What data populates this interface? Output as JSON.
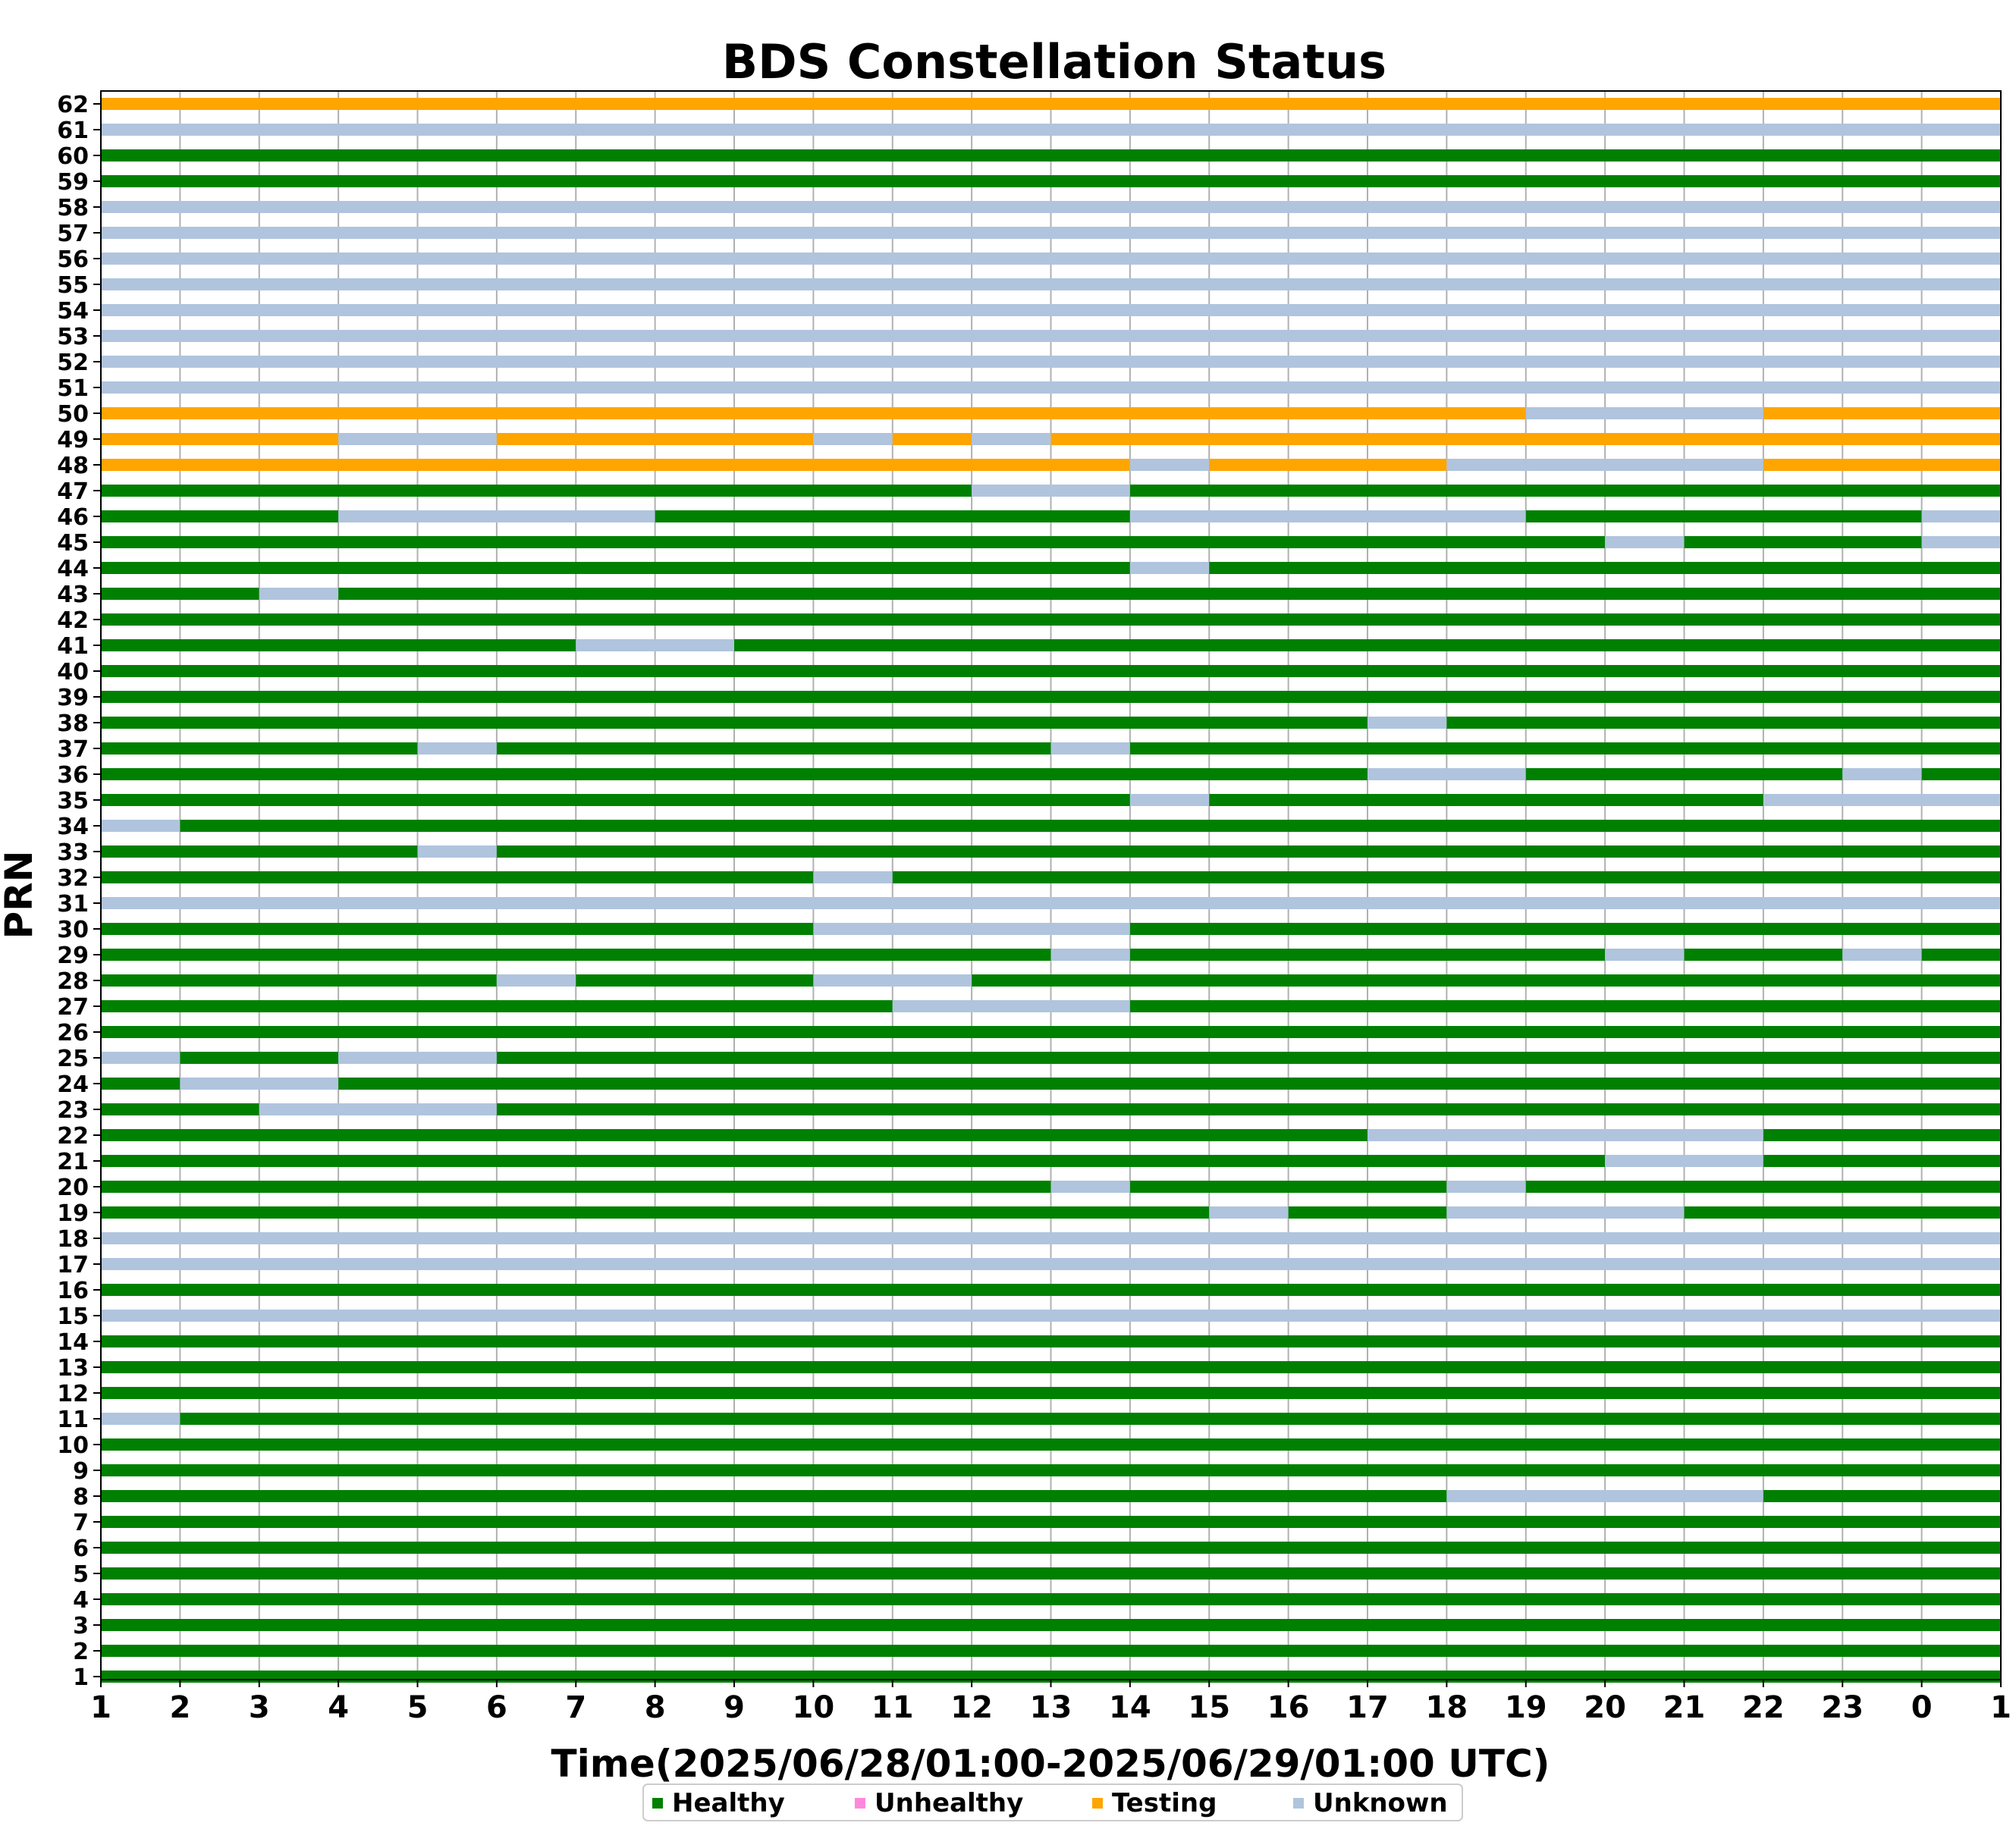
{
  "chart_data": {
    "type": "bar",
    "title": "BDS Constellation Status",
    "xlabel": "Time(2025/06/28/01:00-2025/06/29/01:00 UTC)",
    "ylabel": "PRN",
    "x_ticks": [
      "1",
      "2",
      "3",
      "4",
      "5",
      "6",
      "7",
      "8",
      "9",
      "10",
      "11",
      "12",
      "13",
      "14",
      "15",
      "16",
      "17",
      "18",
      "19",
      "20",
      "21",
      "22",
      "23",
      "0",
      "1"
    ],
    "xlim": [
      0,
      24
    ],
    "grid": "vertical",
    "legend_placement": "bottom-center",
    "legend": [
      {
        "label": "Healthy",
        "color": "#008000"
      },
      {
        "label": "Unhealthy",
        "color": "#ff88dd"
      },
      {
        "label": "Testing",
        "color": "#ffa500"
      },
      {
        "label": "Unknown",
        "color": "#b0c4de"
      }
    ],
    "status_colors": {
      "H": "#008000",
      "U": "#ff88dd",
      "T": "#ffa500",
      "K": "#b0c4de"
    },
    "status_unit": "hours since 2025/06/28 01:00 UTC",
    "prn_status": [
      {
        "prn": "1",
        "segments": [
          [
            0,
            24,
            "H"
          ]
        ]
      },
      {
        "prn": "2",
        "segments": [
          [
            0,
            24,
            "H"
          ]
        ]
      },
      {
        "prn": "3",
        "segments": [
          [
            0,
            24,
            "H"
          ]
        ]
      },
      {
        "prn": "4",
        "segments": [
          [
            0,
            24,
            "H"
          ]
        ]
      },
      {
        "prn": "5",
        "segments": [
          [
            0,
            24,
            "H"
          ]
        ]
      },
      {
        "prn": "6",
        "segments": [
          [
            0,
            24,
            "H"
          ]
        ]
      },
      {
        "prn": "7",
        "segments": [
          [
            0,
            24,
            "H"
          ]
        ]
      },
      {
        "prn": "8",
        "segments": [
          [
            0,
            17,
            "H"
          ],
          [
            17,
            21,
            "K"
          ],
          [
            21,
            24,
            "H"
          ]
        ]
      },
      {
        "prn": "9",
        "segments": [
          [
            0,
            24,
            "H"
          ]
        ]
      },
      {
        "prn": "10",
        "segments": [
          [
            0,
            24,
            "H"
          ]
        ]
      },
      {
        "prn": "11",
        "segments": [
          [
            0,
            1,
            "K"
          ],
          [
            1,
            24,
            "H"
          ]
        ]
      },
      {
        "prn": "12",
        "segments": [
          [
            0,
            24,
            "H"
          ]
        ]
      },
      {
        "prn": "13",
        "segments": [
          [
            0,
            24,
            "H"
          ]
        ]
      },
      {
        "prn": "14",
        "segments": [
          [
            0,
            24,
            "H"
          ]
        ]
      },
      {
        "prn": "15",
        "segments": [
          [
            0,
            24,
            "K"
          ]
        ]
      },
      {
        "prn": "16",
        "segments": [
          [
            0,
            24,
            "H"
          ]
        ]
      },
      {
        "prn": "17",
        "segments": [
          [
            0,
            24,
            "K"
          ]
        ]
      },
      {
        "prn": "18",
        "segments": [
          [
            0,
            24,
            "K"
          ]
        ]
      },
      {
        "prn": "19",
        "segments": [
          [
            0,
            14,
            "H"
          ],
          [
            14,
            15,
            "K"
          ],
          [
            15,
            17,
            "H"
          ],
          [
            17,
            20,
            "K"
          ],
          [
            20,
            24,
            "H"
          ]
        ]
      },
      {
        "prn": "20",
        "segments": [
          [
            0,
            12,
            "H"
          ],
          [
            12,
            13,
            "K"
          ],
          [
            13,
            17,
            "H"
          ],
          [
            17,
            18,
            "K"
          ],
          [
            18,
            24,
            "H"
          ]
        ]
      },
      {
        "prn": "21",
        "segments": [
          [
            0,
            19,
            "H"
          ],
          [
            19,
            21,
            "K"
          ],
          [
            21,
            24,
            "H"
          ]
        ]
      },
      {
        "prn": "22",
        "segments": [
          [
            0,
            16,
            "H"
          ],
          [
            16,
            21,
            "K"
          ],
          [
            21,
            24,
            "H"
          ]
        ]
      },
      {
        "prn": "23",
        "segments": [
          [
            0,
            2,
            "H"
          ],
          [
            2,
            5,
            "K"
          ],
          [
            5,
            24,
            "H"
          ]
        ]
      },
      {
        "prn": "24",
        "segments": [
          [
            0,
            1,
            "H"
          ],
          [
            1,
            3,
            "K"
          ],
          [
            3,
            24,
            "H"
          ]
        ]
      },
      {
        "prn": "25",
        "segments": [
          [
            0,
            1,
            "K"
          ],
          [
            1,
            3,
            "H"
          ],
          [
            3,
            5,
            "K"
          ],
          [
            5,
            24,
            "H"
          ]
        ]
      },
      {
        "prn": "26",
        "segments": [
          [
            0,
            24,
            "H"
          ]
        ]
      },
      {
        "prn": "27",
        "segments": [
          [
            0,
            10,
            "H"
          ],
          [
            10,
            13,
            "K"
          ],
          [
            13,
            24,
            "H"
          ]
        ]
      },
      {
        "prn": "28",
        "segments": [
          [
            0,
            5,
            "H"
          ],
          [
            5,
            6,
            "K"
          ],
          [
            6,
            9,
            "H"
          ],
          [
            9,
            11,
            "K"
          ],
          [
            11,
            24,
            "H"
          ]
        ]
      },
      {
        "prn": "29",
        "segments": [
          [
            0,
            12,
            "H"
          ],
          [
            12,
            13,
            "K"
          ],
          [
            13,
            19,
            "H"
          ],
          [
            19,
            20,
            "K"
          ],
          [
            20,
            22,
            "H"
          ],
          [
            22,
            23,
            "K"
          ],
          [
            23,
            24,
            "H"
          ]
        ]
      },
      {
        "prn": "30",
        "segments": [
          [
            0,
            9,
            "H"
          ],
          [
            9,
            13,
            "K"
          ],
          [
            13,
            24,
            "H"
          ]
        ]
      },
      {
        "prn": "31",
        "segments": [
          [
            0,
            24,
            "K"
          ]
        ]
      },
      {
        "prn": "32",
        "segments": [
          [
            0,
            9,
            "H"
          ],
          [
            9,
            10,
            "K"
          ],
          [
            10,
            24,
            "H"
          ]
        ]
      },
      {
        "prn": "33",
        "segments": [
          [
            0,
            4,
            "H"
          ],
          [
            4,
            5,
            "K"
          ],
          [
            5,
            24,
            "H"
          ]
        ]
      },
      {
        "prn": "34",
        "segments": [
          [
            0,
            1,
            "K"
          ],
          [
            1,
            24,
            "H"
          ]
        ]
      },
      {
        "prn": "35",
        "segments": [
          [
            0,
            13,
            "H"
          ],
          [
            13,
            14,
            "K"
          ],
          [
            14,
            21,
            "H"
          ],
          [
            21,
            24,
            "K"
          ]
        ]
      },
      {
        "prn": "36",
        "segments": [
          [
            0,
            16,
            "H"
          ],
          [
            16,
            18,
            "K"
          ],
          [
            18,
            22,
            "H"
          ],
          [
            22,
            23,
            "K"
          ],
          [
            23,
            24,
            "H"
          ]
        ]
      },
      {
        "prn": "37",
        "segments": [
          [
            0,
            4,
            "H"
          ],
          [
            4,
            5,
            "K"
          ],
          [
            5,
            12,
            "H"
          ],
          [
            12,
            13,
            "K"
          ],
          [
            13,
            24,
            "H"
          ]
        ]
      },
      {
        "prn": "38",
        "segments": [
          [
            0,
            16,
            "H"
          ],
          [
            16,
            17,
            "K"
          ],
          [
            17,
            24,
            "H"
          ]
        ]
      },
      {
        "prn": "39",
        "segments": [
          [
            0,
            24,
            "H"
          ]
        ]
      },
      {
        "prn": "40",
        "segments": [
          [
            0,
            24,
            "H"
          ]
        ]
      },
      {
        "prn": "41",
        "segments": [
          [
            0,
            6,
            "H"
          ],
          [
            6,
            8,
            "K"
          ],
          [
            8,
            24,
            "H"
          ]
        ]
      },
      {
        "prn": "42",
        "segments": [
          [
            0,
            24,
            "H"
          ]
        ]
      },
      {
        "prn": "43",
        "segments": [
          [
            0,
            2,
            "H"
          ],
          [
            2,
            3,
            "K"
          ],
          [
            3,
            24,
            "H"
          ]
        ]
      },
      {
        "prn": "44",
        "segments": [
          [
            0,
            13,
            "H"
          ],
          [
            13,
            14,
            "K"
          ],
          [
            14,
            24,
            "H"
          ]
        ]
      },
      {
        "prn": "45",
        "segments": [
          [
            0,
            19,
            "H"
          ],
          [
            19,
            20,
            "K"
          ],
          [
            20,
            23,
            "H"
          ],
          [
            23,
            24,
            "K"
          ]
        ]
      },
      {
        "prn": "46",
        "segments": [
          [
            0,
            3,
            "H"
          ],
          [
            3,
            7,
            "K"
          ],
          [
            7,
            13,
            "H"
          ],
          [
            13,
            18,
            "K"
          ],
          [
            18,
            23,
            "H"
          ],
          [
            23,
            24,
            "K"
          ]
        ]
      },
      {
        "prn": "47",
        "segments": [
          [
            0,
            11,
            "H"
          ],
          [
            11,
            13,
            "K"
          ],
          [
            13,
            24,
            "H"
          ]
        ]
      },
      {
        "prn": "48",
        "segments": [
          [
            0,
            13,
            "T"
          ],
          [
            13,
            14,
            "K"
          ],
          [
            14,
            17,
            "T"
          ],
          [
            17,
            21,
            "K"
          ],
          [
            21,
            24,
            "T"
          ]
        ]
      },
      {
        "prn": "49",
        "segments": [
          [
            0,
            3,
            "T"
          ],
          [
            3,
            5,
            "K"
          ],
          [
            5,
            9,
            "T"
          ],
          [
            9,
            10,
            "K"
          ],
          [
            10,
            11,
            "T"
          ],
          [
            11,
            12,
            "K"
          ],
          [
            12,
            24,
            "T"
          ]
        ]
      },
      {
        "prn": "50",
        "segments": [
          [
            0,
            18,
            "T"
          ],
          [
            18,
            21,
            "K"
          ],
          [
            21,
            24,
            "T"
          ]
        ]
      },
      {
        "prn": "51",
        "segments": [
          [
            0,
            24,
            "K"
          ]
        ]
      },
      {
        "prn": "52",
        "segments": [
          [
            0,
            24,
            "K"
          ]
        ]
      },
      {
        "prn": "53",
        "segments": [
          [
            0,
            24,
            "K"
          ]
        ]
      },
      {
        "prn": "54",
        "segments": [
          [
            0,
            24,
            "K"
          ]
        ]
      },
      {
        "prn": "55",
        "segments": [
          [
            0,
            24,
            "K"
          ]
        ]
      },
      {
        "prn": "56",
        "segments": [
          [
            0,
            24,
            "K"
          ]
        ]
      },
      {
        "prn": "57",
        "segments": [
          [
            0,
            24,
            "K"
          ]
        ]
      },
      {
        "prn": "58",
        "segments": [
          [
            0,
            24,
            "K"
          ]
        ]
      },
      {
        "prn": "59",
        "segments": [
          [
            0,
            24,
            "H"
          ]
        ]
      },
      {
        "prn": "60",
        "segments": [
          [
            0,
            24,
            "H"
          ]
        ]
      },
      {
        "prn": "61",
        "segments": [
          [
            0,
            24,
            "K"
          ]
        ]
      },
      {
        "prn": "62",
        "segments": [
          [
            0,
            24,
            "T"
          ]
        ]
      }
    ]
  }
}
